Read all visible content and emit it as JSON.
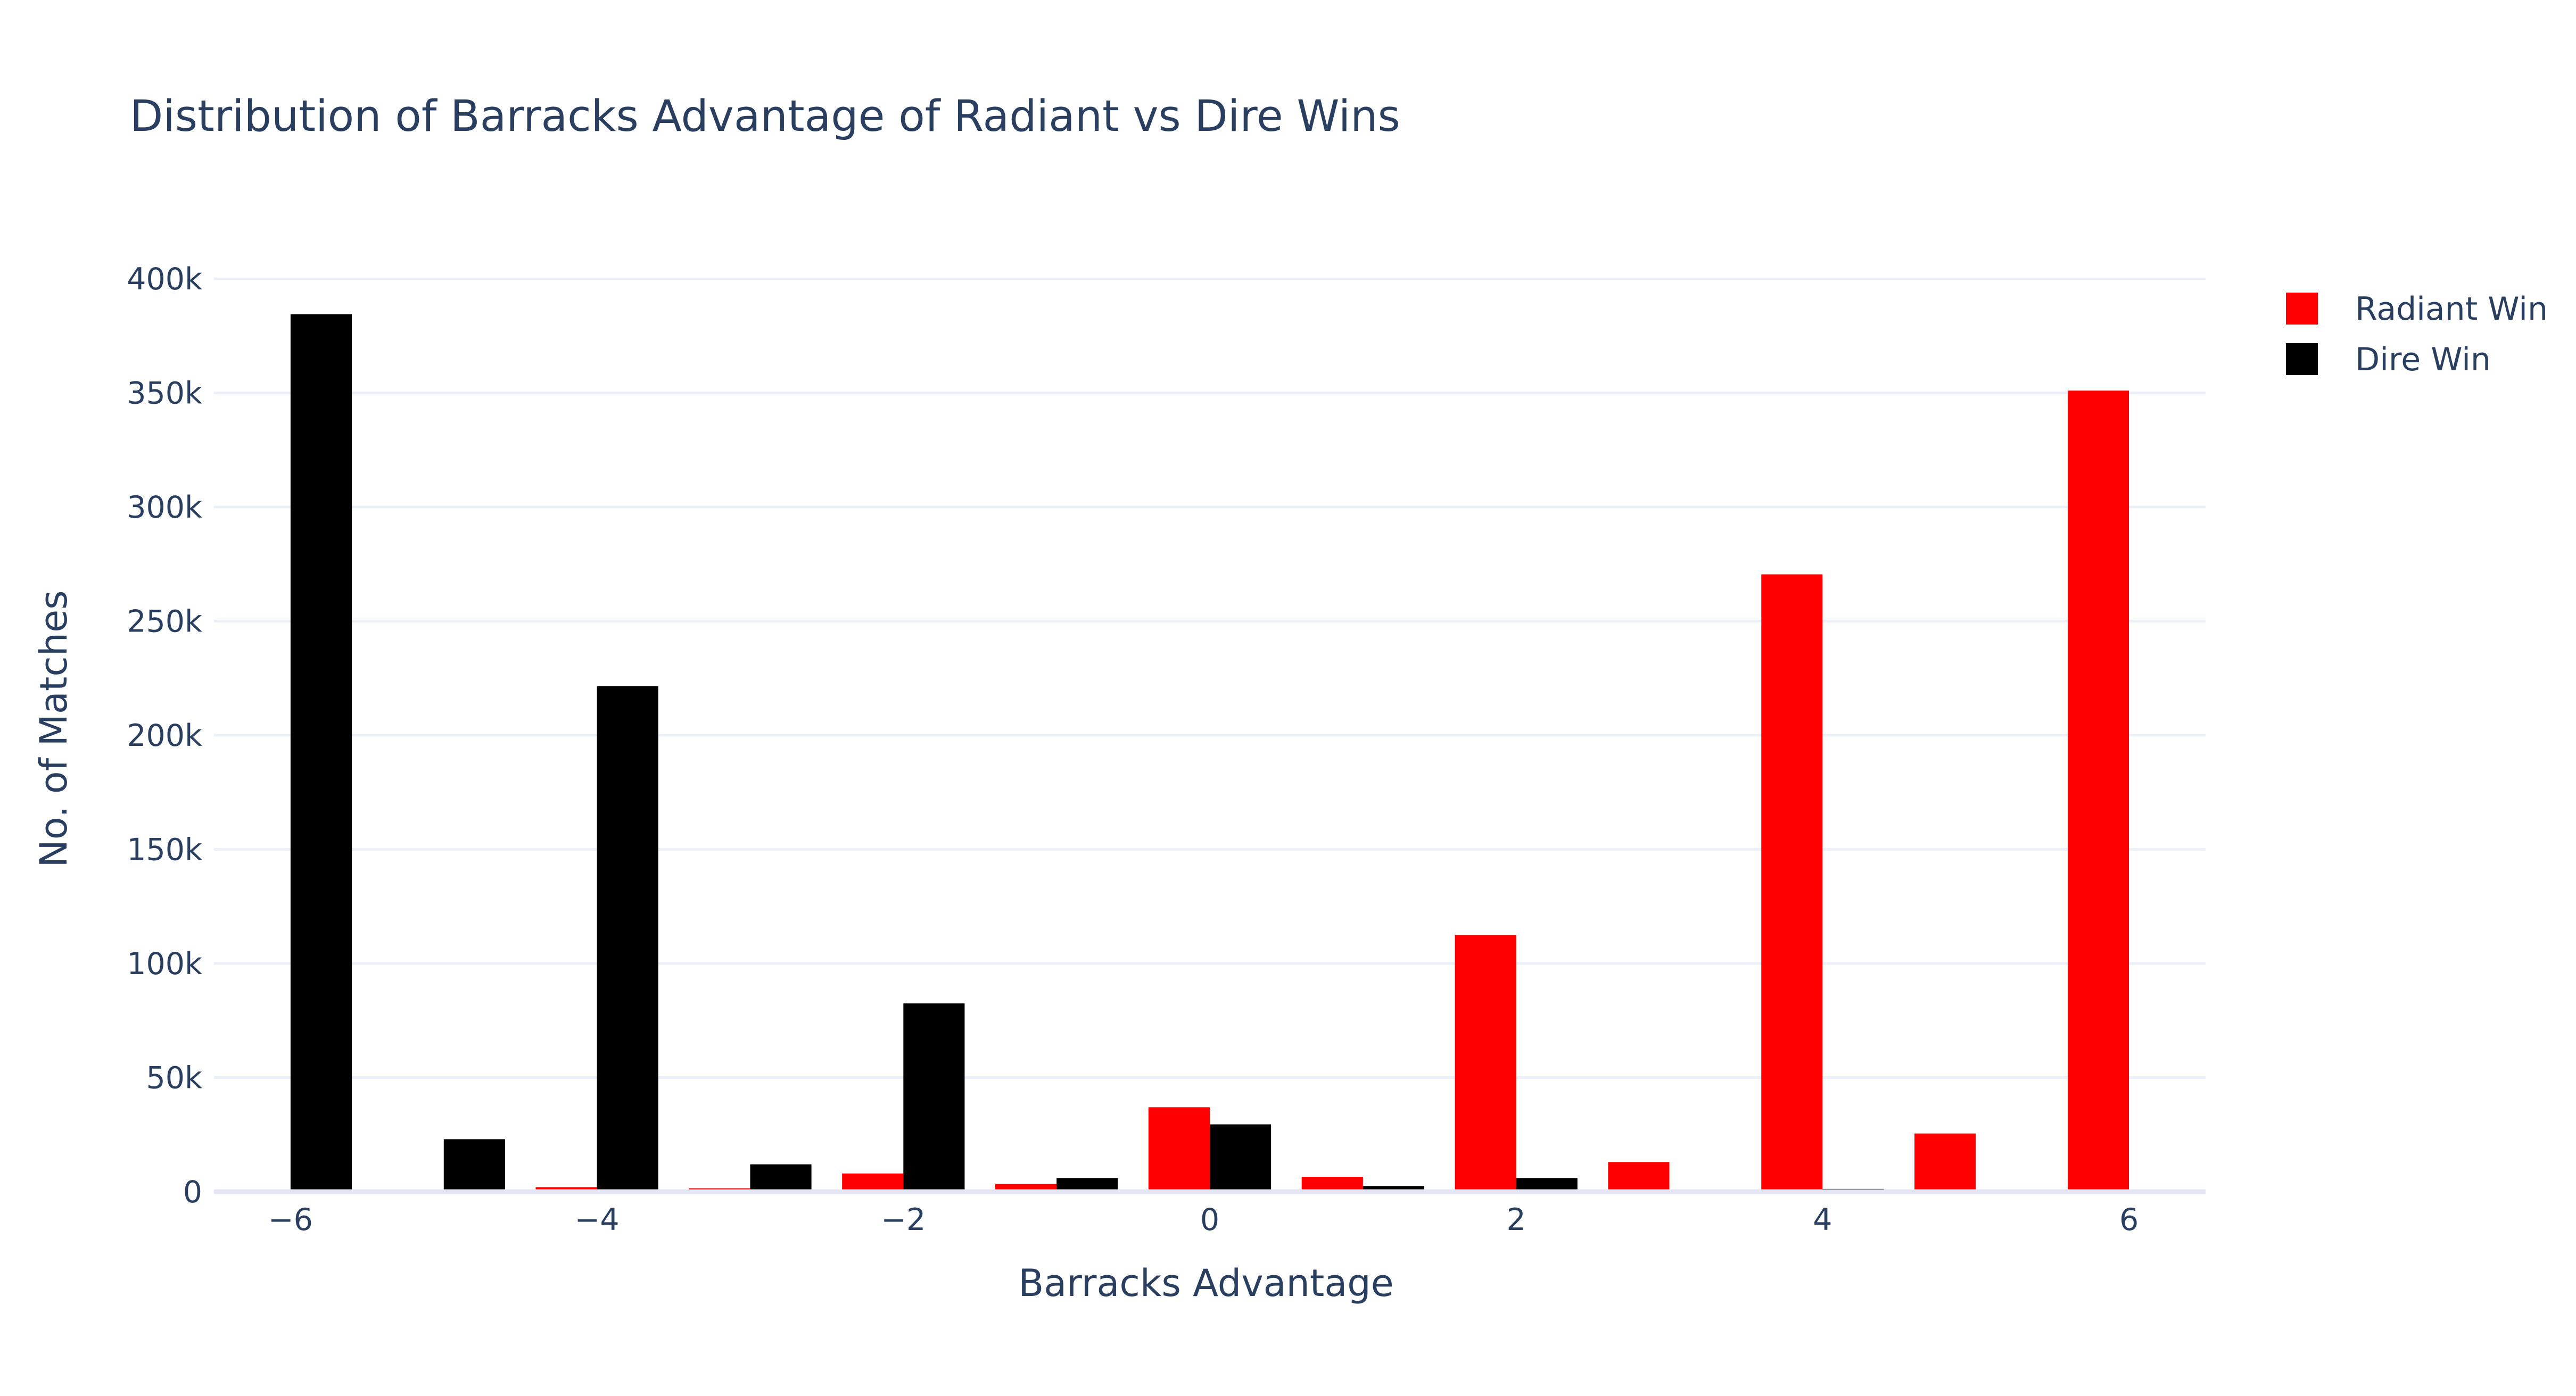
{
  "chart_data": {
    "type": "bar",
    "title": "Distribution of Barracks Advantage of Radiant vs Dire Wins",
    "xlabel": "Barracks Advantage",
    "ylabel": "No. of Matches",
    "x": [
      -6,
      -5,
      -4,
      -3,
      -2,
      -1,
      0,
      1,
      2,
      3,
      4,
      5,
      6
    ],
    "xlim": [
      -6.5,
      6.5
    ],
    "xticks": [
      -6,
      -4,
      -2,
      0,
      2,
      4,
      6
    ],
    "xtick_labels": [
      "−6",
      "−4",
      "−2",
      "0",
      "2",
      "4",
      "6"
    ],
    "ylim": [
      0,
      400000
    ],
    "yticks": [
      0,
      50000,
      100000,
      150000,
      200000,
      250000,
      300000,
      350000,
      400000
    ],
    "ytick_labels": [
      "0",
      "50k",
      "100k",
      "150k",
      "200k",
      "250k",
      "300k",
      "350k",
      "400k"
    ],
    "grid": true,
    "legend_position": "top-right",
    "series": [
      {
        "name": "Radiant Win",
        "color": "#ff0000",
        "values": [
          300,
          700,
          2000,
          1500,
          8000,
          3500,
          37000,
          6500,
          112500,
          13000,
          270500,
          25500,
          351000
        ]
      },
      {
        "name": "Dire Win",
        "color": "#000000",
        "values": [
          384500,
          23000,
          221500,
          12000,
          82500,
          6000,
          29500,
          2500,
          6000,
          1000,
          1200,
          300,
          500
        ]
      }
    ]
  }
}
